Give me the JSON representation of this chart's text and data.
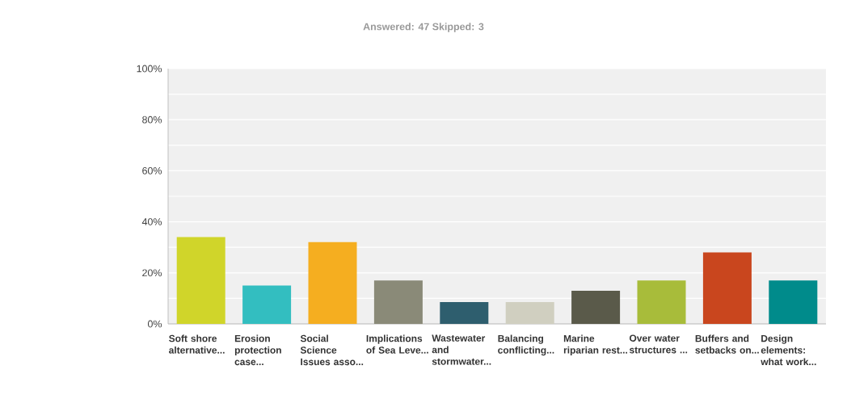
{
  "chart_data": {
    "type": "bar",
    "title": "Answered: 47    Skipped: 3",
    "categories": [
      "Soft shore alternative...",
      "Erosion protection case...",
      "Social Science Issues asso...",
      "Implications of Sea Leve...",
      "Wastewater and stormwater...",
      "Balancing conflicting...",
      "Marine riparian rest...",
      "Over water structures ...",
      "Buffers and setbacks on...",
      "Design elements: what work..."
    ],
    "values": [
      34,
      15,
      32,
      17,
      8.5,
      8.5,
      13,
      17,
      28,
      17
    ],
    "colors": [
      "#d0d52a",
      "#33bec0",
      "#f5ae20",
      "#8a8a78",
      "#2e5e6e",
      "#d0cfc0",
      "#5a5a4a",
      "#a8bc3a",
      "#c9461e",
      "#008b8b"
    ],
    "ylim": [
      0,
      100
    ],
    "yticks": [
      {
        "value": 0,
        "label": "0%"
      },
      {
        "value": 10,
        "label": null
      },
      {
        "value": 20,
        "label": "20%"
      },
      {
        "value": 30,
        "label": null
      },
      {
        "value": 40,
        "label": "40%"
      },
      {
        "value": 50,
        "label": null
      },
      {
        "value": 60,
        "label": "60%"
      },
      {
        "value": 70,
        "label": null
      },
      {
        "value": 80,
        "label": "80%"
      },
      {
        "value": 90,
        "label": null
      },
      {
        "value": 100,
        "label": "100%"
      }
    ],
    "grid": true
  }
}
